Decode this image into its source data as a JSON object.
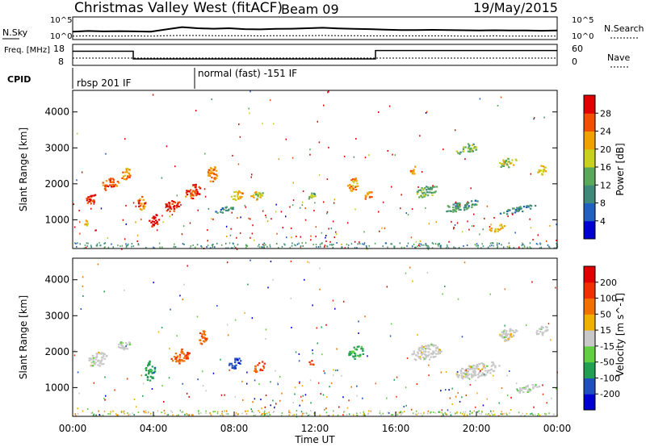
{
  "header": {
    "title": "Christmas Valley West (fitACF)",
    "beam": "Beam 09",
    "date": "19/May/2015"
  },
  "chart_data": [
    {
      "type": "line",
      "name": "noise-panel",
      "label_left": "N.Sky",
      "label_right": "N.Search",
      "y_ticks": [
        "10^5",
        "10^0"
      ],
      "series": [
        {
          "values": [
            0.35,
            0.38,
            0.36,
            0.37,
            0.36,
            0.35,
            0.45,
            0.55,
            0.5,
            0.48,
            0.5,
            0.46,
            0.45,
            0.47,
            0.48,
            0.5,
            0.52,
            0.49,
            0.47,
            0.46,
            0.44,
            0.42,
            0.42,
            0.43,
            0.42,
            0.41,
            0.4,
            0.41,
            0.4,
            0.4,
            0.39,
            0.4
          ]
        },
        {
          "values": [
            0.15,
            0.16,
            0.15,
            0.15,
            0.16,
            0.15,
            0.17,
            0.18,
            0.18,
            0.17,
            0.17,
            0.17,
            0.16,
            0.17,
            0.17,
            0.17,
            0.18,
            0.17,
            0.17,
            0.16,
            0.16,
            0.16,
            0.16,
            0.16,
            0.16,
            0.15,
            0.15,
            0.16,
            0.15,
            0.15,
            0.15,
            0.15
          ]
        }
      ]
    },
    {
      "type": "line",
      "name": "freq-panel",
      "label_left": "Freq. [MHz]",
      "label_right": "Nave",
      "y_ticks_left": [
        "18",
        "8"
      ],
      "y_ticks_right": [
        "60",
        "0"
      ],
      "series": [
        {
          "segments": [
            {
              "t0": 0,
              "t1": 3.0,
              "freq": 15.5
            },
            {
              "t0": 3.0,
              "t1": 15.0,
              "freq": 10.2
            },
            {
              "t0": 15.0,
              "t1": 24,
              "freq": 16.0
            }
          ]
        }
      ]
    },
    {
      "type": "table",
      "name": "cpid-panel",
      "label": "CPID",
      "segments": [
        {
          "t0": 0,
          "t1": 6.1,
          "text": "rbsp 201 IF"
        },
        {
          "t0": 6.1,
          "t1": 24,
          "text": "normal (fast) -151 IF"
        }
      ]
    },
    {
      "type": "heatmap",
      "name": "power-panel",
      "ylabel": "Slant Range [km]",
      "y_ticks": [
        "1000",
        "2000",
        "3000",
        "4000"
      ],
      "ylim": [
        200,
        4600
      ],
      "xlim": [
        0,
        24
      ],
      "colorbar": {
        "label": "Power [dB]",
        "ticks": [
          "4",
          "8",
          "12",
          "16",
          "20",
          "24",
          "28"
        ],
        "colors": [
          "#0000d0",
          "#2060c0",
          "#3d8a7a",
          "#5aa85a",
          "#c8d020",
          "#f0a000",
          "#f05000",
          "#e00000"
        ]
      },
      "blobs": [
        {
          "t": 0.9,
          "r": 1600,
          "dt": 0.6,
          "dr": 250,
          "v": 0.9
        },
        {
          "t": 1.8,
          "r": 2000,
          "dt": 0.9,
          "dr": 350,
          "v": 0.8
        },
        {
          "t": 2.6,
          "r": 2300,
          "dt": 0.5,
          "dr": 350,
          "v": 0.7
        },
        {
          "t": 0.6,
          "r": 900,
          "dt": 0.3,
          "dr": 200,
          "v": 0.6
        },
        {
          "t": 3.4,
          "r": 1500,
          "dt": 0.4,
          "dr": 400,
          "v": 0.8
        },
        {
          "t": 4.0,
          "r": 1000,
          "dt": 0.5,
          "dr": 350,
          "v": 0.95
        },
        {
          "t": 4.9,
          "r": 1400,
          "dt": 0.8,
          "dr": 300,
          "v": 0.9
        },
        {
          "t": 5.9,
          "r": 1800,
          "dt": 0.8,
          "dr": 400,
          "v": 0.85
        },
        {
          "t": 6.9,
          "r": 2300,
          "dt": 0.5,
          "dr": 450,
          "v": 0.75
        },
        {
          "t": 8.1,
          "r": 1700,
          "dt": 0.6,
          "dr": 250,
          "v": 0.65
        },
        {
          "t": 9.1,
          "r": 1700,
          "dt": 0.6,
          "dr": 250,
          "v": 0.6
        },
        {
          "t": 7.5,
          "r": 1300,
          "dt": 0.9,
          "dr": 150,
          "v": 0.35
        },
        {
          "t": 11.8,
          "r": 1700,
          "dt": 0.4,
          "dr": 200,
          "v": 0.45
        },
        {
          "t": 13.9,
          "r": 2000,
          "dt": 0.6,
          "dr": 350,
          "v": 0.7
        },
        {
          "t": 14.6,
          "r": 1700,
          "dt": 0.4,
          "dr": 250,
          "v": 0.75
        },
        {
          "t": 16.8,
          "r": 2400,
          "dt": 0.3,
          "dr": 300,
          "v": 0.75
        },
        {
          "t": 17.5,
          "r": 1800,
          "dt": 1.2,
          "dr": 300,
          "v": 0.4
        },
        {
          "t": 19.2,
          "r": 1400,
          "dt": 1.8,
          "dr": 250,
          "v": 0.35
        },
        {
          "t": 21.0,
          "r": 800,
          "dt": 0.8,
          "dr": 200,
          "v": 0.6
        },
        {
          "t": 22.0,
          "r": 1300,
          "dt": 2.0,
          "dr": 150,
          "v": 0.3
        },
        {
          "t": 23.2,
          "r": 2400,
          "dt": 0.5,
          "dr": 250,
          "v": 0.65
        },
        {
          "t": 19.5,
          "r": 3000,
          "dt": 1.2,
          "dr": 250,
          "v": 0.45
        },
        {
          "t": 21.5,
          "r": 2600,
          "dt": 0.9,
          "dr": 250,
          "v": 0.55
        }
      ]
    },
    {
      "type": "heatmap",
      "name": "velocity-panel",
      "ylabel": "Slant Range [km]",
      "xlabel": "Time UT",
      "x_ticks": [
        "00:00",
        "04:00",
        "08:00",
        "12:00",
        "16:00",
        "20:00",
        "00:00"
      ],
      "y_ticks": [
        "1000",
        "2000",
        "3000",
        "4000"
      ],
      "ylim": [
        200,
        4600
      ],
      "xlim": [
        0,
        24
      ],
      "colorbar": {
        "label": "Velocity [m s^-1]",
        "ticks": [
          "200",
          "100",
          "50",
          "15",
          "-15",
          "-50",
          "-100",
          "-200"
        ],
        "colors": [
          "#0000d0",
          "#2050c0",
          "#20a050",
          "#60d040",
          "#c8c8c8",
          "#f0b000",
          "#f07000",
          "#f03000",
          "#e00000"
        ]
      },
      "blobs": [
        {
          "t": 1.2,
          "r": 1800,
          "dt": 1.0,
          "dr": 400,
          "v": 0.0
        },
        {
          "t": 2.5,
          "r": 2200,
          "dt": 0.6,
          "dr": 300,
          "v": 0.0
        },
        {
          "t": 3.8,
          "r": 1500,
          "dt": 0.5,
          "dr": 600,
          "v": 0.45
        },
        {
          "t": 5.3,
          "r": 1900,
          "dt": 0.9,
          "dr": 400,
          "v": -0.55
        },
        {
          "t": 6.4,
          "r": 2400,
          "dt": 0.5,
          "dr": 400,
          "v": -0.5
        },
        {
          "t": 8.0,
          "r": 1700,
          "dt": 0.6,
          "dr": 300,
          "v": 0.7
        },
        {
          "t": 9.2,
          "r": 1600,
          "dt": 0.6,
          "dr": 300,
          "v": -0.6
        },
        {
          "t": 11.8,
          "r": 1700,
          "dt": 0.4,
          "dr": 150,
          "v": -0.65
        },
        {
          "t": 14.0,
          "r": 2000,
          "dt": 0.8,
          "dr": 350,
          "v": 0.4
        },
        {
          "t": 17.5,
          "r": 2000,
          "dt": 1.5,
          "dr": 450,
          "v": 0.0
        },
        {
          "t": 20.0,
          "r": 1500,
          "dt": 2.2,
          "dr": 400,
          "v": 0.0
        },
        {
          "t": 21.5,
          "r": 2500,
          "dt": 1.0,
          "dr": 350,
          "v": 0.0
        },
        {
          "t": 23.2,
          "r": 2600,
          "dt": 0.6,
          "dr": 250,
          "v": 0.0
        },
        {
          "t": 22.5,
          "r": 1000,
          "dt": 1.2,
          "dr": 200,
          "v": 0.05
        }
      ]
    }
  ]
}
